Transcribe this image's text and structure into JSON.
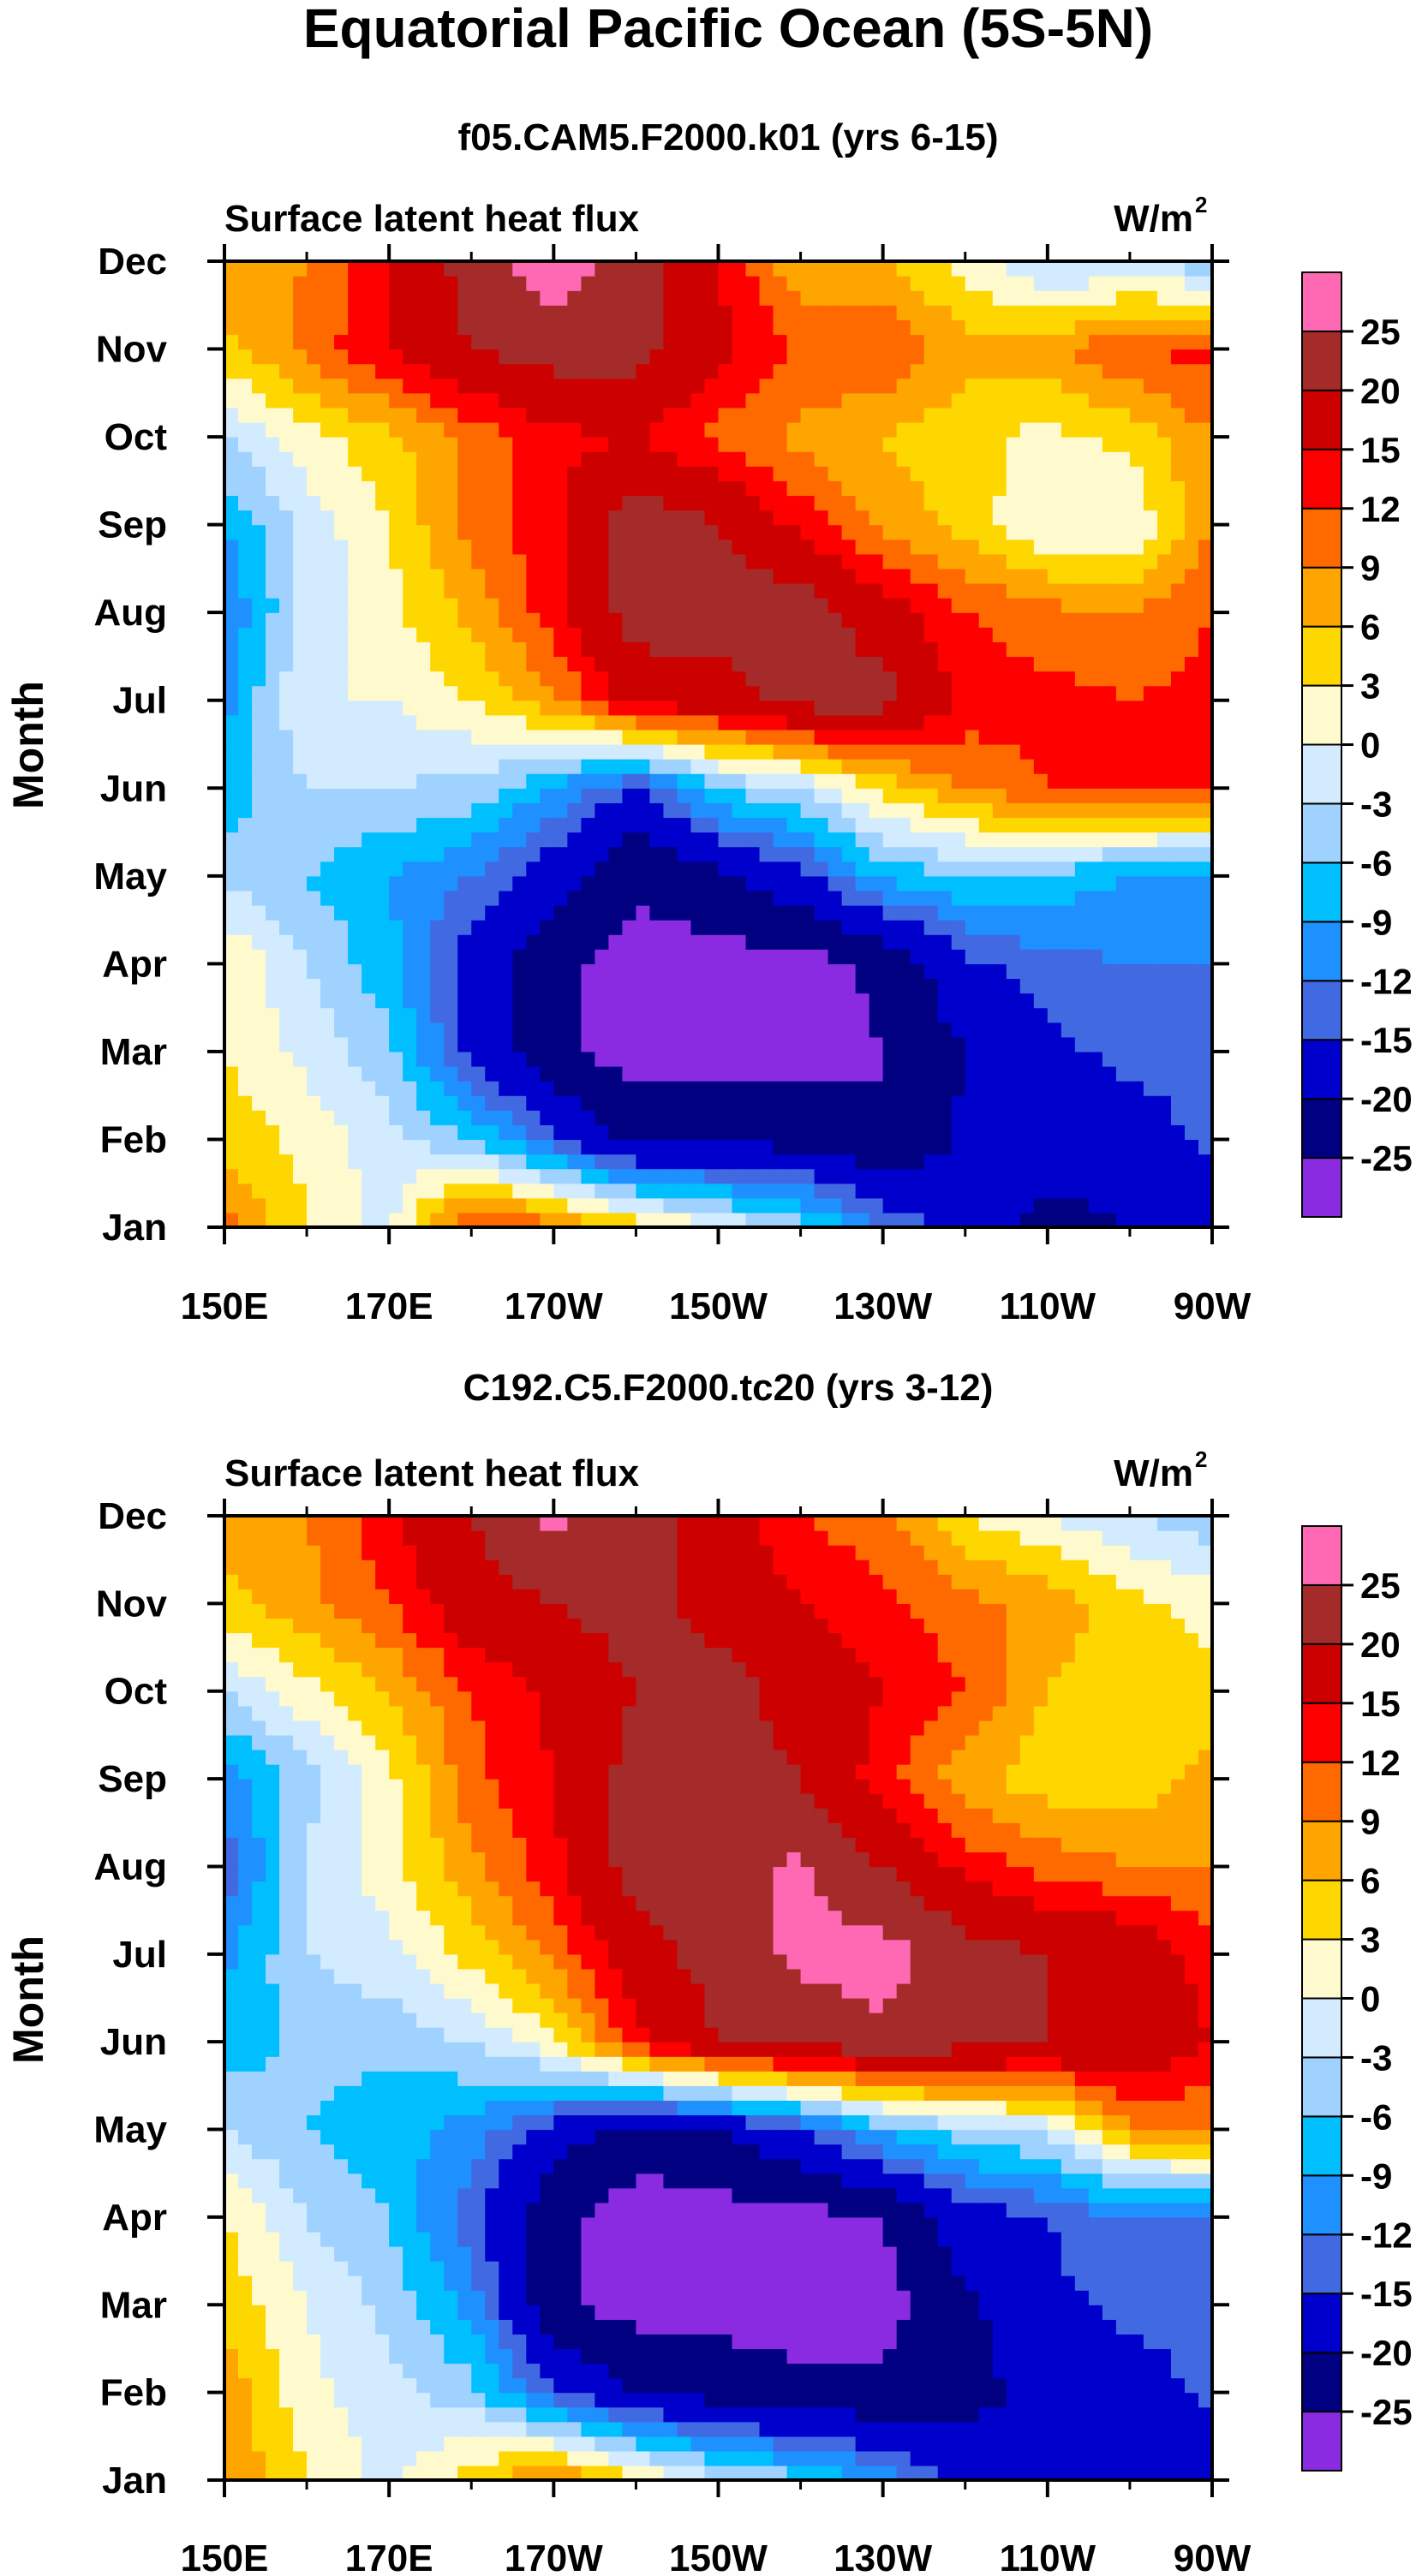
{
  "figure": {
    "title": "Equatorial Pacific Ocean (5S-5N)"
  },
  "colors": {
    "scale": [
      "#8a2be2",
      "#000080",
      "#0000cd",
      "#4169e1",
      "#1e90ff",
      "#00bfff",
      "#a0d2ff",
      "#d2ebff",
      "#fffacd",
      "#ffd700",
      "#ffa500",
      "#ff6a00",
      "#ff0000",
      "#cd0000",
      "#a52a2a",
      "#ff69b4"
    ]
  },
  "chart_data": [
    {
      "type": "heatmap",
      "panel": "top",
      "title": "f05.CAM5.F2000.k01 (yrs 6-15)",
      "left_label": "Surface latent heat flux",
      "units_label": "W/m",
      "units_superscript": "2",
      "ylabel": "Month",
      "x_tick_labels": [
        "150E",
        "170E",
        "170W",
        "150W",
        "130W",
        "110W",
        "90W"
      ],
      "y_tick_labels": [
        "Jan",
        "Feb",
        "Mar",
        "Apr",
        "May",
        "Jun",
        "Jul",
        "Aug",
        "Sep",
        "Oct",
        "Nov",
        "Dec"
      ],
      "xlim": [
        150,
        270
      ],
      "colorbar_labels": [
        "-25",
        "-20",
        "-15",
        "-12",
        "-9",
        "-6",
        "-3",
        "0",
        "3",
        "6",
        "9",
        "12",
        "15",
        "20",
        "25"
      ],
      "contour_levels": [
        -25,
        -20,
        -15,
        -12,
        -9,
        -6,
        -3,
        0,
        3,
        6,
        9,
        12,
        15,
        20,
        25
      ],
      "x": [
        150,
        160,
        170,
        180,
        190,
        200,
        210,
        220,
        230,
        240,
        250,
        260,
        270
      ],
      "months": [
        "Jan",
        "Feb",
        "Mar",
        "Apr",
        "May",
        "Jun",
        "Jul",
        "Aug",
        "Sep",
        "Oct",
        "Nov",
        "Dec"
      ],
      "values": [
        [
          10,
          3,
          -1,
          14,
          10,
          5,
          0,
          -4,
          -12,
          -17,
          -22,
          -20,
          -18
        ],
        [
          5,
          2,
          -2,
          -6,
          -14,
          -22,
          -21,
          -22,
          -25,
          -19,
          -17,
          -17,
          -14
        ],
        [
          3,
          -1,
          -5,
          -16,
          -24,
          -27,
          -27,
          -27,
          -25,
          -20,
          -16,
          -14,
          -14
        ],
        [
          3,
          -3,
          -8,
          -17,
          -24,
          -27,
          -27,
          -27,
          -24,
          -16,
          -13,
          -12,
          -12
        ],
        [
          -4,
          -6,
          -9,
          -12,
          -18,
          -24,
          -21,
          -16,
          -8,
          -6,
          -7,
          -9,
          -10
        ],
        [
          -8,
          -3,
          -3,
          -4,
          -9,
          -16,
          -6,
          -3,
          4,
          9,
          12,
          13,
          13
        ],
        [
          -10,
          0,
          0,
          3,
          8,
          17,
          18,
          22,
          22,
          14,
          13,
          12,
          13
        ],
        [
          -12,
          -2,
          2,
          7,
          14,
          22,
          22,
          23,
          17,
          12,
          10,
          9,
          12
        ],
        [
          -9,
          -2,
          3,
          10,
          14,
          23,
          20,
          14,
          8,
          5,
          0,
          0,
          9
        ],
        [
          -3,
          2,
          5,
          10,
          14,
          15,
          11,
          8,
          6,
          4,
          2,
          4,
          9
        ],
        [
          5,
          10,
          15,
          20,
          22,
          22,
          16,
          12,
          12,
          7,
          8,
          12,
          13
        ],
        [
          8,
          9,
          15,
          22,
          28,
          23,
          15,
          6,
          6,
          2,
          -4,
          -3,
          -5
        ]
      ]
    },
    {
      "type": "heatmap",
      "panel": "bottom",
      "title": "C192.C5.F2000.tc20 (yrs 3-12)",
      "left_label": "Surface latent heat flux",
      "units_label": "W/m",
      "units_superscript": "2",
      "ylabel": "Month",
      "x_tick_labels": [
        "150E",
        "170E",
        "170W",
        "150W",
        "130W",
        "110W",
        "90W"
      ],
      "y_tick_labels": [
        "Jan",
        "Feb",
        "Mar",
        "Apr",
        "May",
        "Jun",
        "Jul",
        "Aug",
        "Sep",
        "Oct",
        "Nov",
        "Dec"
      ],
      "xlim": [
        150,
        270
      ],
      "colorbar_labels": [
        "-25",
        "-20",
        "-15",
        "-12",
        "-9",
        "-6",
        "-3",
        "0",
        "3",
        "6",
        "9",
        "12",
        "15",
        "20",
        "25"
      ],
      "contour_levels": [
        -25,
        -20,
        -15,
        -12,
        -9,
        -6,
        -3,
        0,
        3,
        6,
        9,
        12,
        15,
        20,
        25
      ],
      "x": [
        150,
        160,
        170,
        180,
        190,
        200,
        210,
        220,
        230,
        240,
        250,
        260,
        270
      ],
      "months": [
        "Jan",
        "Feb",
        "Mar",
        "Apr",
        "May",
        "Jun",
        "Jul",
        "Aug",
        "Sep",
        "Oct",
        "Nov",
        "Dec"
      ],
      "values": [
        [
          9,
          3,
          -1,
          5,
          10,
          4,
          -2,
          -5,
          -10,
          -16,
          -20,
          -20,
          -19
        ],
        [
          8,
          1,
          -2,
          -5,
          -14,
          -20,
          -22,
          -24,
          -24,
          -22,
          -18,
          -17,
          -14
        ],
        [
          5,
          0,
          -4,
          -10,
          -24,
          -27,
          -27,
          -27,
          -27,
          -21,
          -16,
          -14,
          -14
        ],
        [
          3,
          -3,
          -6,
          -14,
          -24,
          -27,
          -27,
          -27,
          -25,
          -17,
          -15,
          -12,
          -12
        ],
        [
          -3,
          -6,
          -8,
          -10,
          -17,
          -23,
          -20,
          -15,
          -8,
          -4,
          -2,
          8,
          9
        ],
        [
          -8,
          -5,
          -5,
          -3,
          2,
          14,
          20,
          22,
          24,
          22,
          20,
          20,
          15
        ],
        [
          -10,
          -3,
          -1,
          4,
          10,
          18,
          22,
          26,
          27,
          22,
          20,
          19,
          13
        ],
        [
          -14,
          -3,
          2,
          8,
          14,
          22,
          23,
          26,
          20,
          14,
          11,
          9,
          9
        ],
        [
          -11,
          -4,
          2,
          11,
          15,
          22,
          22,
          20,
          13,
          7,
          4,
          4,
          7
        ],
        [
          -3,
          2,
          6,
          12,
          16,
          20,
          22,
          18,
          15,
          12,
          6,
          4,
          4
        ],
        [
          5,
          8,
          12,
          18,
          20,
          22,
          18,
          15,
          13,
          10,
          8,
          4,
          2
        ],
        [
          7,
          9,
          14,
          20,
          26,
          22,
          18,
          12,
          10,
          3,
          0,
          -3,
          -5
        ]
      ]
    }
  ]
}
